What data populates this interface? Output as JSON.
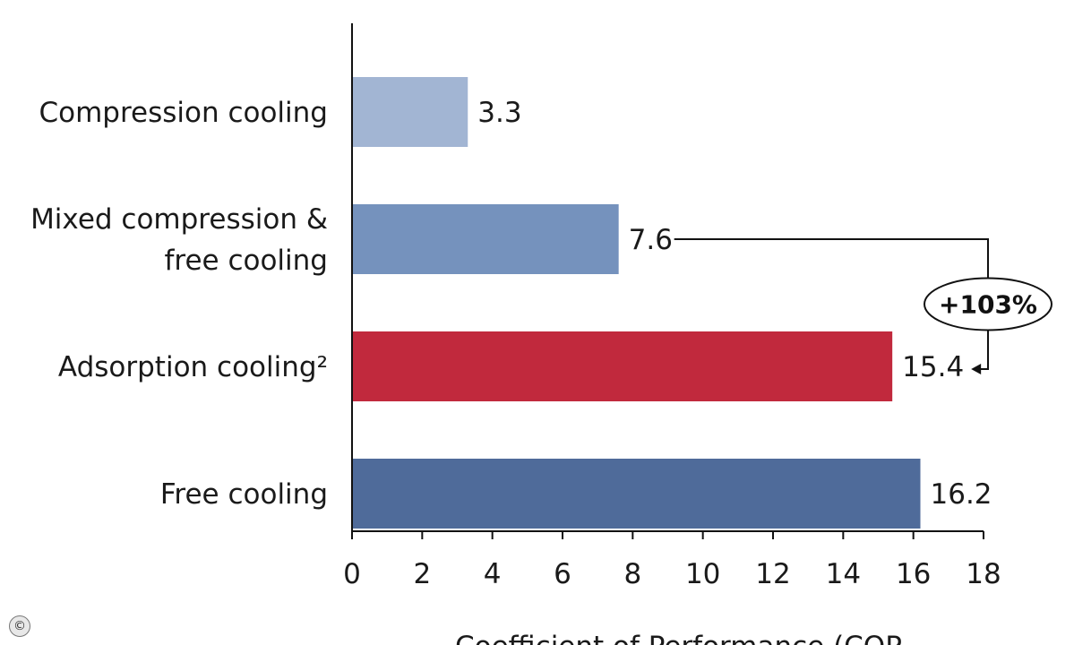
{
  "chart_data": {
    "type": "bar",
    "orientation": "horizontal",
    "categories": [
      [
        "Compression cooling"
      ],
      [
        "Mixed compression &",
        "free cooling"
      ],
      [
        "Adsorption cooling²"
      ],
      [
        "Free cooling"
      ]
    ],
    "values": [
      3.3,
      7.6,
      15.4,
      16.2
    ],
    "value_labels": [
      "3.3",
      "7.6",
      "15.4",
      "16.2"
    ],
    "colors": [
      "#a2b5d3",
      "#7592bd",
      "#c1293d",
      "#4f6b9a"
    ],
    "xlim": [
      0,
      18
    ],
    "xticks": [
      0,
      2,
      4,
      6,
      8,
      10,
      12,
      14,
      16,
      18
    ],
    "xlabel": "Coefficient of Performance (COP",
    "grid": false,
    "annotation": {
      "label": "+103%",
      "from_category_index": 1,
      "to_category_index": 2
    }
  },
  "copyright_symbol": "©"
}
